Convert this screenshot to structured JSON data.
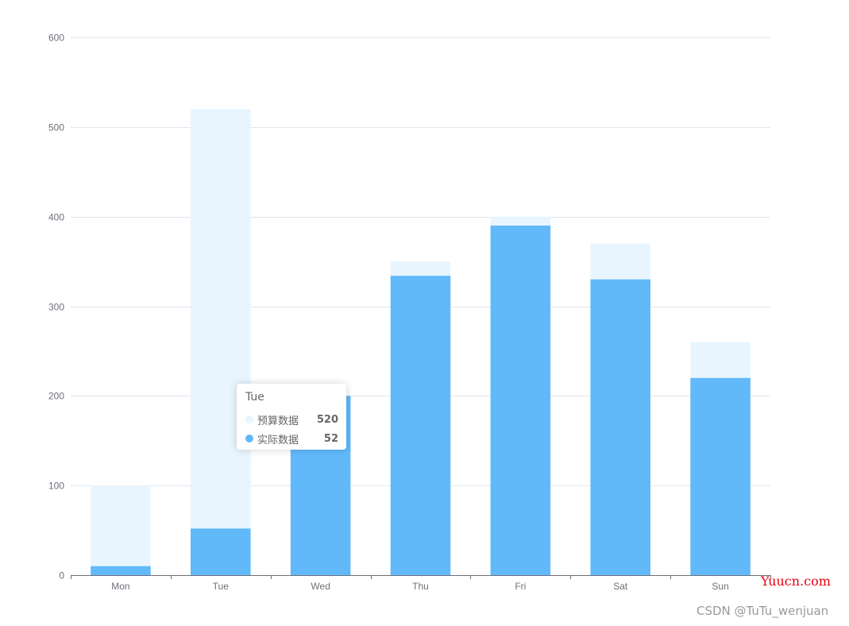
{
  "chart_data": {
    "type": "bar",
    "categories": [
      "Mon",
      "Tue",
      "Wed",
      "Thu",
      "Fri",
      "Sat",
      "Sun"
    ],
    "series": [
      {
        "name": "预算数据",
        "values": [
          100,
          520,
          200,
          350,
          400,
          370,
          260
        ],
        "color": "#e8f5fe"
      },
      {
        "name": "实际数据",
        "values": [
          10,
          52,
          200,
          334,
          390,
          330,
          220
        ],
        "color": "#61b9fa"
      }
    ],
    "overlap": true,
    "ylim": [
      0,
      600
    ],
    "yticks": [
      0,
      100,
      200,
      300,
      400,
      500,
      600
    ],
    "grid": true,
    "title": "",
    "xlabel": "",
    "ylabel": ""
  },
  "tooltip": {
    "title": "Tue",
    "rows": [
      {
        "name": "预算数据",
        "value": "520",
        "color": "#e8f5fe"
      },
      {
        "name": "实际数据",
        "value": "52",
        "color": "#61b9fa"
      }
    ]
  },
  "watermarks": {
    "site": "Yuucn.com",
    "author": "CSDN @TuTu_wenjuan"
  }
}
